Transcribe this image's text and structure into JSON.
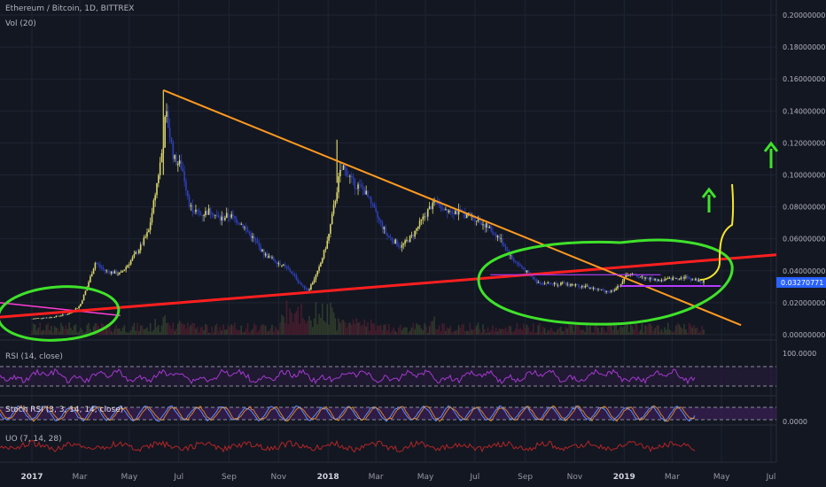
{
  "header": {
    "title": "Ethereum / Bitcoin, 1D, BITTREX",
    "volume_label": "Vol (20)"
  },
  "price_axis": {
    "ticks": [
      "0.20000000",
      "0.18000000",
      "0.16000000",
      "0.14000000",
      "0.12000000",
      "0.10000000",
      "0.08000000",
      "0.06000000",
      "0.04000000",
      "0.02000000",
      "0.00000000"
    ],
    "current_price": "0.03270771"
  },
  "rsi": {
    "label": "RSI (14, close)",
    "tick": "100.0000"
  },
  "stoch": {
    "label": "Stoch RSI (3, 3, 14, 14, close)",
    "tick": "0.0000"
  },
  "uo": {
    "label": "UO (7, 14, 28)"
  },
  "time_axis": [
    "2017",
    "Mar",
    "May",
    "Jul",
    "Sep",
    "Nov",
    "2018",
    "Mar",
    "May",
    "Jul",
    "Sep",
    "Nov",
    "2019",
    "Mar",
    "May",
    "Jul"
  ],
  "colors": {
    "background": "#131722",
    "candle_up": "#d9d56a",
    "candle_down": "#2e3fb7",
    "downtrend_line": "#ff9a1f",
    "support_line": "#ff1f1f",
    "ellipse": "#3fe22a",
    "rsi_line": "#a43ad0",
    "uo_line": "#b22525",
    "price_tag": "#2962ff"
  },
  "chart_data": {
    "type": "line",
    "title": "Ethereum / Bitcoin, 1D, BITTREX",
    "ylim": [
      0,
      0.2
    ],
    "x": [
      "2017-01",
      "2017-02",
      "2017-03",
      "2017-04",
      "2017-05",
      "2017-06",
      "2017-07",
      "2017-08",
      "2017-09",
      "2017-10",
      "2017-11",
      "2017-12",
      "2018-01",
      "2018-02",
      "2018-03",
      "2018-04",
      "2018-05",
      "2018-06",
      "2018-07",
      "2018-08",
      "2018-09",
      "2018-10",
      "2018-11",
      "2018-12",
      "2019-01",
      "2019-02",
      "2019-03"
    ],
    "series": [
      {
        "values": [
          0.011,
          0.012,
          0.02,
          0.04,
          0.06,
          0.12,
          0.08,
          0.07,
          0.07,
          0.05,
          0.04,
          0.045,
          0.1,
          0.09,
          0.06,
          0.065,
          0.085,
          0.078,
          0.07,
          0.055,
          0.033,
          0.031,
          0.029,
          0.03,
          0.037,
          0.034,
          0.0327
        ]
      }
    ],
    "annotations": [
      "Descending trendline from 0.153 (Jun 2017) to ~0.04 (Feb 2019)",
      "Ascending support line from ~0.015 (Jan 2017) to ~0.047 (May 2019)",
      "Horizontal line at ~0.032",
      "Green ellipses around Jan-Mar 2017 and Aug 2018-Apr 2019 consolidation",
      "Green up arrows and yellow projection curve"
    ]
  }
}
